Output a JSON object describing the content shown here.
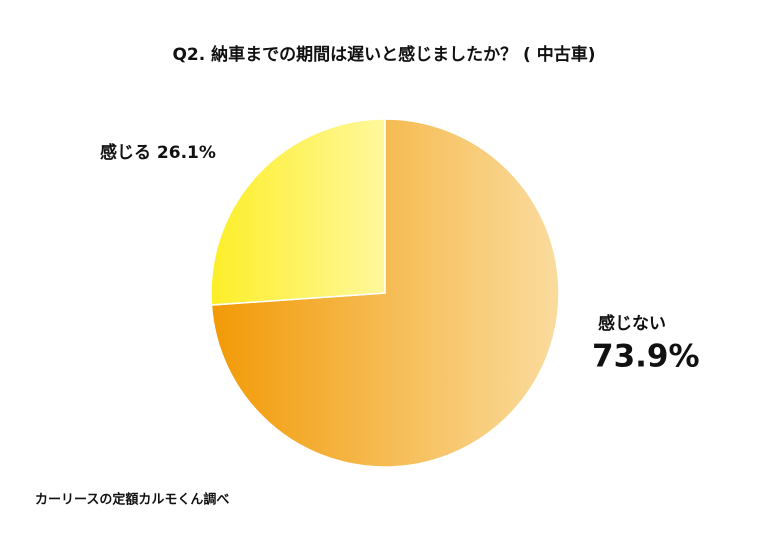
{
  "chart_data": {
    "type": "pie",
    "title": "Q2. 納車までの期間は遅いと感じましたか？ ( 中古車)",
    "categories": [
      "感じない",
      "感じる"
    ],
    "values": [
      73.9,
      26.1
    ],
    "value_labels": [
      "73.9%",
      "26.1%"
    ],
    "colors": [
      [
        "#f29a06",
        "#fadc9e"
      ],
      [
        "#fdee28",
        "#fff89c"
      ]
    ],
    "source": "カーリースの定額カルモくん調べ"
  }
}
